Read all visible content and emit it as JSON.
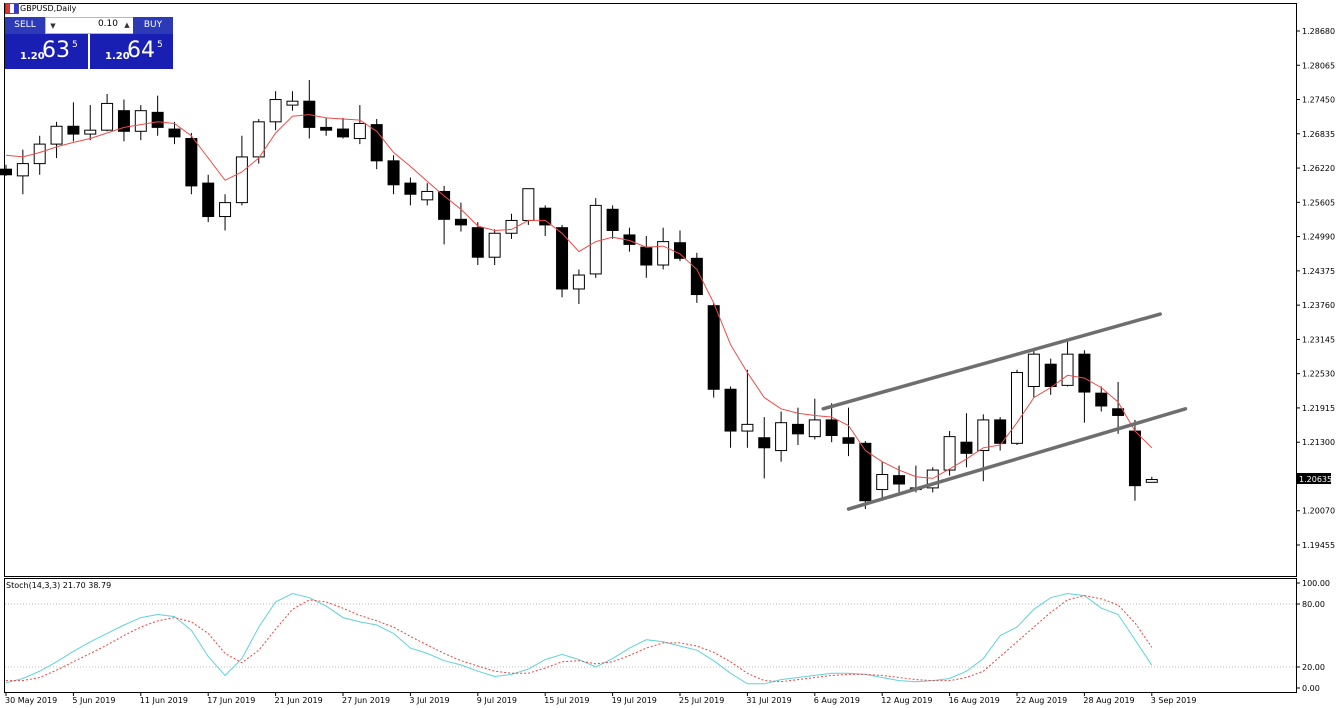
{
  "window": {
    "title": "GBPUSD,Daily"
  },
  "trade_panel": {
    "sell_label": "SELL",
    "buy_label": "BUY",
    "lot_value": "0.10",
    "sell_small": "1.20",
    "sell_big": "63",
    "sell_sup": "5",
    "buy_small": "1.20",
    "buy_big": "64",
    "buy_sup": "5",
    "color_sell_box": "#1a1fb4"
  },
  "indicator": {
    "label": "Stoch(14,3,3) 21.70 38.79"
  },
  "current_price": "1.20635",
  "chart_data": {
    "type": "candlestick",
    "symbol": "GBPUSD",
    "timeframe": "Daily",
    "price_axis": {
      "labels": [
        "1.28680",
        "1.28065",
        "1.27450",
        "1.26835",
        "1.26220",
        "1.25605",
        "1.24990",
        "1.24375",
        "1.23760",
        "1.23145",
        "1.22530",
        "1.21915",
        "1.21300",
        "1.20070",
        "1.19455"
      ],
      "ylim": [
        1.1905,
        1.2925
      ]
    },
    "x_labels": [
      {
        "label": "30 May 2019",
        "index": 0
      },
      {
        "label": "5 Jun 2019",
        "index": 4
      },
      {
        "label": "11 Jun 2019",
        "index": 8
      },
      {
        "label": "17 Jun 2019",
        "index": 12
      },
      {
        "label": "21 Jun 2019",
        "index": 16
      },
      {
        "label": "27 Jun 2019",
        "index": 20
      },
      {
        "label": "3 Jul 2019",
        "index": 24
      },
      {
        "label": "9 Jul 2019",
        "index": 28
      },
      {
        "label": "15 Jul 2019",
        "index": 32
      },
      {
        "label": "19 Jul 2019",
        "index": 36
      },
      {
        "label": "25 Jul 2019",
        "index": 40
      },
      {
        "label": "31 Jul 2019",
        "index": 44
      },
      {
        "label": "6 Aug 2019",
        "index": 48
      },
      {
        "label": "12 Aug 2019",
        "index": 52
      },
      {
        "label": "16 Aug 2019",
        "index": 56
      },
      {
        "label": "22 Aug 2019",
        "index": 60
      },
      {
        "label": "28 Aug 2019",
        "index": 64
      },
      {
        "label": "3 Sep 2019",
        "index": 68
      }
    ],
    "candles": [
      [
        1.262,
        1.2628,
        1.2608,
        1.261
      ],
      [
        1.2608,
        1.2655,
        1.2575,
        1.263
      ],
      [
        1.263,
        1.268,
        1.261,
        1.2665
      ],
      [
        1.2665,
        1.2705,
        1.264,
        1.2697
      ],
      [
        1.2697,
        1.274,
        1.267,
        1.2683
      ],
      [
        1.2683,
        1.2735,
        1.2672,
        1.269
      ],
      [
        1.269,
        1.2755,
        1.2688,
        1.2738
      ],
      [
        1.2725,
        1.2745,
        1.267,
        1.2688
      ],
      [
        1.2688,
        1.2735,
        1.2672,
        1.2725
      ],
      [
        1.2722,
        1.2752,
        1.268,
        1.2695
      ],
      [
        1.2692,
        1.2705,
        1.2665,
        1.2678
      ],
      [
        1.2675,
        1.2685,
        1.2575,
        1.259
      ],
      [
        1.2595,
        1.261,
        1.2525,
        1.2535
      ],
      [
        1.2535,
        1.2575,
        1.251,
        1.256
      ],
      [
        1.256,
        1.268,
        1.2555,
        1.2642
      ],
      [
        1.2642,
        1.271,
        1.263,
        1.2705
      ],
      [
        1.2705,
        1.276,
        1.269,
        1.2745
      ],
      [
        1.2735,
        1.276,
        1.2725,
        1.2742
      ],
      [
        1.2742,
        1.278,
        1.2675,
        1.2695
      ],
      [
        1.2695,
        1.2712,
        1.268,
        1.269
      ],
      [
        1.2692,
        1.2712,
        1.2675,
        1.2678
      ],
      [
        1.2675,
        1.2735,
        1.2665,
        1.2702
      ],
      [
        1.27,
        1.271,
        1.262,
        1.2635
      ],
      [
        1.2635,
        1.2645,
        1.2575,
        1.2592
      ],
      [
        1.2595,
        1.2605,
        1.2555,
        1.2575
      ],
      [
        1.2565,
        1.2595,
        1.2555,
        1.258
      ],
      [
        1.258,
        1.259,
        1.2485,
        1.253
      ],
      [
        1.253,
        1.256,
        1.2508,
        1.252
      ],
      [
        1.2515,
        1.2525,
        1.2448,
        1.2462
      ],
      [
        1.2462,
        1.2512,
        1.2448,
        1.2505
      ],
      [
        1.2505,
        1.254,
        1.2495,
        1.2528
      ],
      [
        1.2528,
        1.2585,
        1.252,
        1.2585
      ],
      [
        1.255,
        1.2555,
        1.25,
        1.252
      ],
      [
        1.2515,
        1.252,
        1.239,
        1.2405
      ],
      [
        1.2405,
        1.244,
        1.2378,
        1.243
      ],
      [
        1.2432,
        1.2568,
        1.2425,
        1.2555
      ],
      [
        1.2548,
        1.2555,
        1.2495,
        1.251
      ],
      [
        1.2502,
        1.2515,
        1.2472,
        1.2485
      ],
      [
        1.248,
        1.25,
        1.2425,
        1.2448
      ],
      [
        1.2448,
        1.2515,
        1.244,
        1.249
      ],
      [
        1.2488,
        1.251,
        1.2455,
        1.246
      ],
      [
        1.246,
        1.247,
        1.238,
        1.2395
      ],
      [
        1.2375,
        1.238,
        1.221,
        1.2225
      ],
      [
        1.2225,
        1.223,
        1.212,
        1.215
      ],
      [
        1.215,
        1.226,
        1.212,
        1.2162
      ],
      [
        1.2138,
        1.2175,
        1.2065,
        1.212
      ],
      [
        1.2115,
        1.2185,
        1.2095,
        1.2165
      ],
      [
        1.2162,
        1.2192,
        1.2125,
        1.2145
      ],
      [
        1.214,
        1.2208,
        1.2135,
        1.217
      ],
      [
        1.217,
        1.22,
        1.213,
        1.2142
      ],
      [
        1.2138,
        1.2192,
        1.2105,
        1.2128
      ],
      [
        1.2128,
        1.2132,
        1.201,
        1.2025
      ],
      [
        1.2045,
        1.2095,
        1.2025,
        1.2072
      ],
      [
        1.207,
        1.2088,
        1.204,
        1.2055
      ],
      [
        1.2048,
        1.2088,
        1.204,
        1.2045
      ],
      [
        1.2048,
        1.2085,
        1.204,
        1.208
      ],
      [
        1.208,
        1.215,
        1.207,
        1.214
      ],
      [
        1.213,
        1.2182,
        1.2085,
        1.211
      ],
      [
        1.2115,
        1.218,
        1.206,
        1.217
      ],
      [
        1.217,
        1.2175,
        1.2115,
        1.2128
      ],
      [
        1.2128,
        1.226,
        1.2125,
        1.2255
      ],
      [
        1.223,
        1.2295,
        1.221,
        1.2288
      ],
      [
        1.227,
        1.228,
        1.2215,
        1.223
      ],
      [
        1.2232,
        1.231,
        1.223,
        1.2288
      ],
      [
        1.2288,
        1.2295,
        1.2165,
        1.222
      ],
      [
        1.2218,
        1.223,
        1.2185,
        1.2195
      ],
      [
        1.219,
        1.2238,
        1.2145,
        1.2178
      ],
      [
        1.215,
        1.217,
        1.2025,
        1.2052
      ],
      [
        1.2058,
        1.2068,
        1.2058,
        1.2063
      ]
    ],
    "ma": [
      1.2645,
      1.2642,
      1.265,
      1.266,
      1.2668,
      1.2675,
      1.2685,
      1.2695,
      1.27,
      1.2705,
      1.2702,
      1.268,
      1.264,
      1.26,
      1.2615,
      1.264,
      1.2685,
      1.2715,
      1.2718,
      1.2712,
      1.271,
      1.2708,
      1.2688,
      1.265,
      1.2625,
      1.2598,
      1.2572,
      1.2548,
      1.2518,
      1.251,
      1.2512,
      1.2528,
      1.2528,
      1.2505,
      1.2472,
      1.249,
      1.2498,
      1.2492,
      1.248,
      1.2482,
      1.2468,
      1.244,
      1.238,
      1.2305,
      1.2255,
      1.221,
      1.219,
      1.2182,
      1.2178,
      1.2175,
      1.216,
      1.2115,
      1.2095,
      1.208,
      1.2068,
      1.2065,
      1.2082,
      1.21,
      1.212,
      1.2125,
      1.2165,
      1.221,
      1.2228,
      1.225,
      1.2245,
      1.2228,
      1.2202,
      1.215,
      1.212
    ],
    "channel_lines": [
      {
        "start": [
          48.5,
          1.219
        ],
        "end": [
          68.5,
          1.236
        ]
      },
      {
        "start": [
          50,
          1.201
        ],
        "end": [
          70,
          1.219
        ]
      }
    ],
    "stochastic": {
      "name": "Stoch(14,3,3)",
      "main_value": 21.7,
      "signal_value": 38.79,
      "levels": [
        20,
        80
      ],
      "axis_labels": [
        "100.00",
        "80.00",
        "20.00",
        "0.00"
      ],
      "main": [
        5,
        9,
        16,
        25,
        35,
        44,
        52,
        60,
        67,
        70,
        68,
        55,
        30,
        12,
        28,
        58,
        82,
        90,
        86,
        78,
        67,
        63,
        60,
        52,
        38,
        33,
        26,
        22,
        16,
        11,
        13,
        18,
        27,
        32,
        27,
        20,
        28,
        38,
        46,
        44,
        40,
        36,
        26,
        14,
        4,
        4,
        8,
        10,
        12,
        14,
        14,
        13,
        10,
        7,
        6,
        7,
        9,
        16,
        28,
        50,
        58,
        75,
        86,
        90,
        88,
        76,
        70,
        46,
        21.7
      ],
      "signal": [
        7,
        7,
        10,
        17,
        25,
        33,
        41,
        50,
        58,
        64,
        67,
        63,
        52,
        33,
        24,
        36,
        56,
        75,
        84,
        82,
        76,
        69,
        64,
        58,
        49,
        41,
        33,
        26,
        21,
        16,
        14,
        14,
        19,
        25,
        26,
        23,
        25,
        31,
        38,
        43,
        43,
        40,
        34,
        25,
        14,
        7,
        6,
        8,
        10,
        12,
        13,
        13,
        12,
        10,
        8,
        7,
        7,
        10,
        16,
        30,
        44,
        58,
        72,
        84,
        88,
        85,
        79,
        62,
        38.79
      ]
    }
  }
}
